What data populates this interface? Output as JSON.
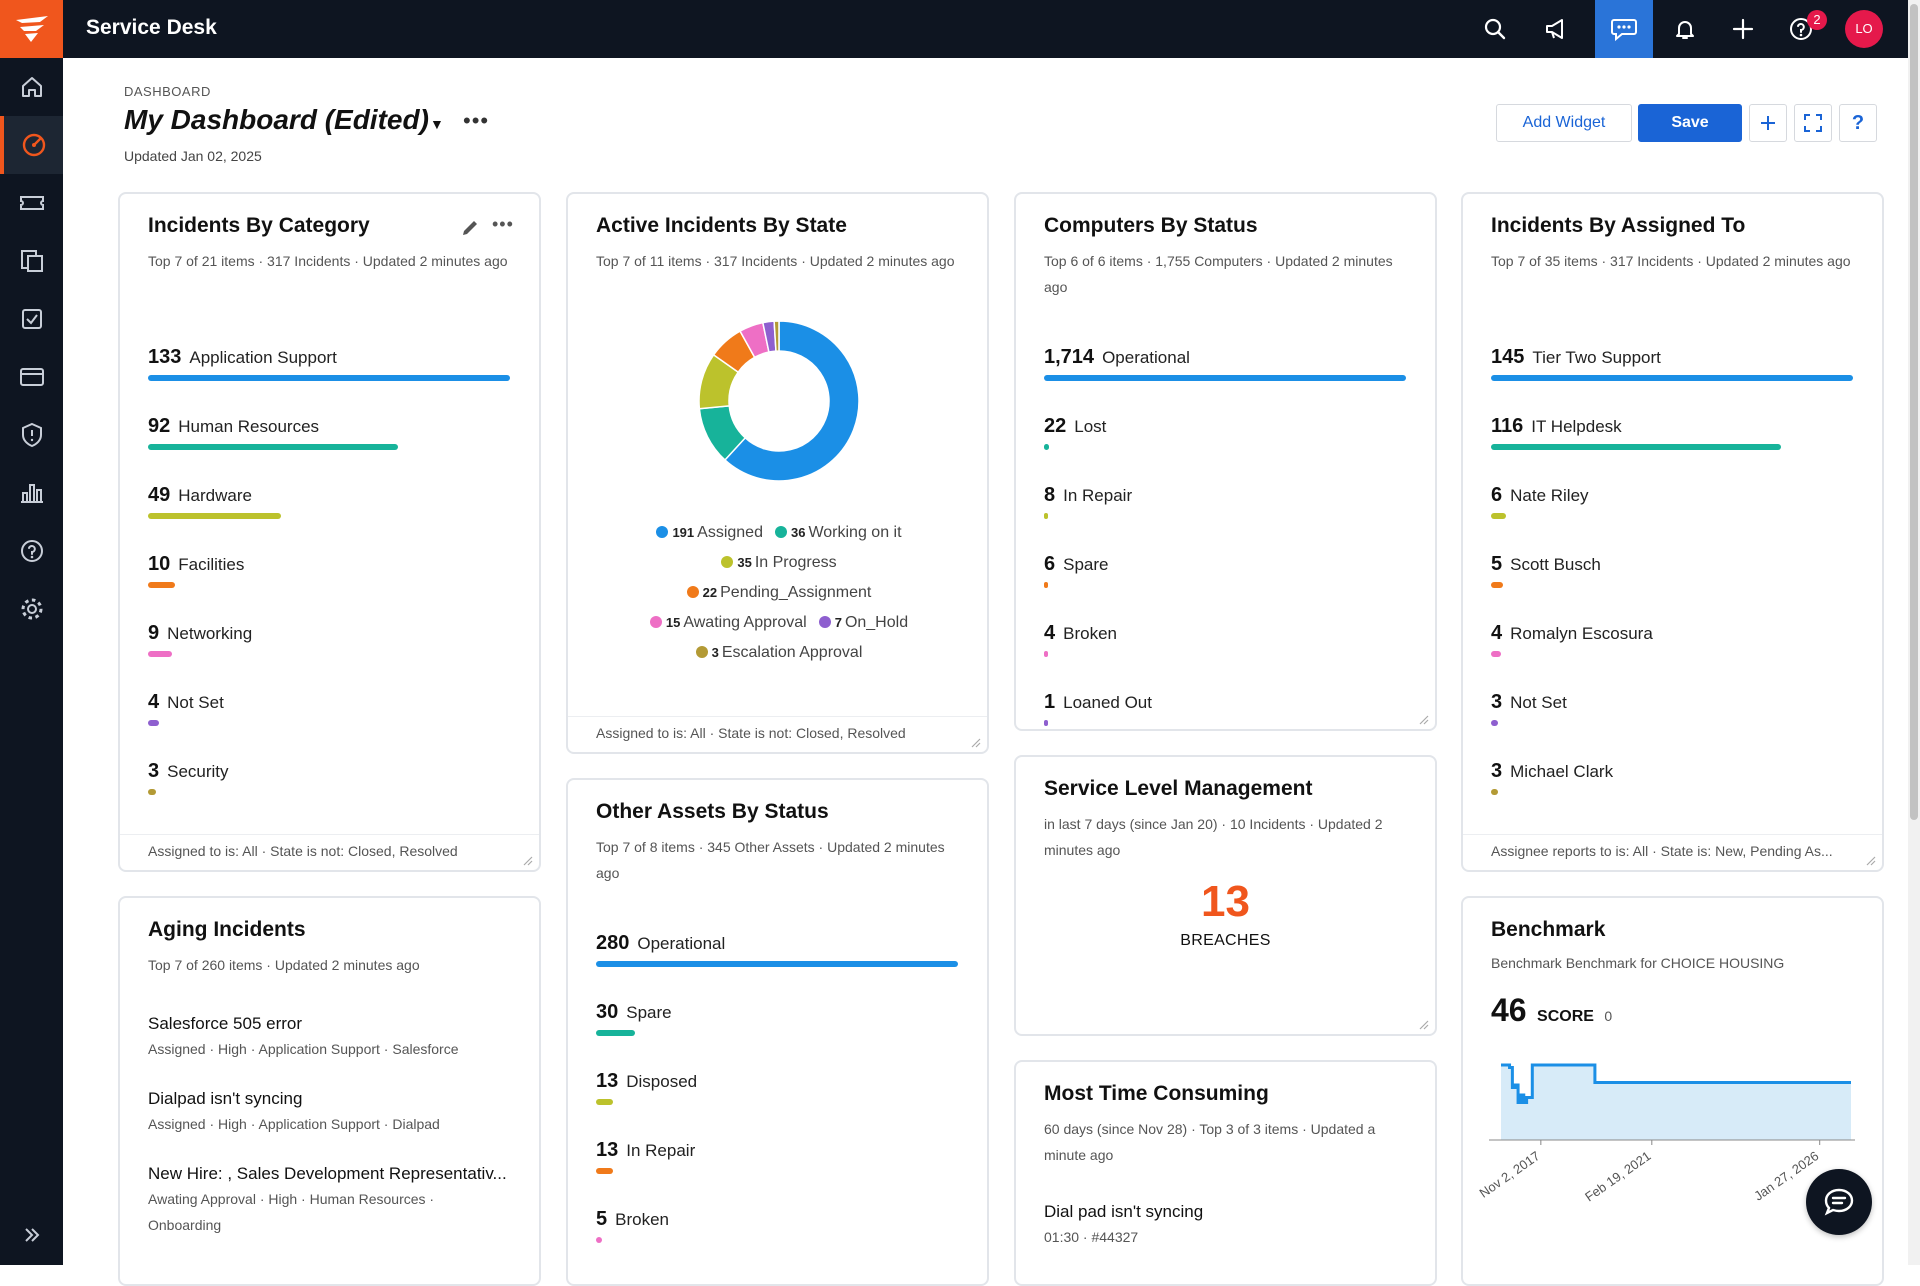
{
  "app": {
    "title": "Service Desk",
    "user_initials": "LO",
    "help_badge": "2"
  },
  "header": {
    "breadcrumb": "DASHBOARD",
    "title": "My Dashboard (Edited)",
    "updated": "Updated Jan 02, 2025",
    "add_widget_label": "Add Widget",
    "save_label": "Save"
  },
  "colors": {
    "accent": "#f0561d",
    "primary": "#1a64d6",
    "series": [
      "#1b8fe6",
      "#17b39a",
      "#bcc22c",
      "#f07a1a",
      "#ee6fc5",
      "#8e5fcf",
      "#b39a35"
    ]
  },
  "widgets": {
    "category": {
      "title": "Incidents By Category",
      "subtitle": "Top 7 of 21 items · 317 Incidents · Updated 2 minutes ago",
      "footer": "Assigned to is: All · State is not: Closed, Resolved",
      "items": [
        {
          "value": 133,
          "label": "Application Support"
        },
        {
          "value": 92,
          "label": "Human Resources"
        },
        {
          "value": 49,
          "label": "Hardware"
        },
        {
          "value": 10,
          "label": "Facilities"
        },
        {
          "value": 9,
          "label": "Networking"
        },
        {
          "value": 4,
          "label": "Not Set"
        },
        {
          "value": 3,
          "label": "Security"
        }
      ]
    },
    "state": {
      "title": "Active Incidents By State",
      "subtitle": "Top 7 of 11 items · 317 Incidents · Updated 2 minutes ago",
      "footer": "Assigned to is: All · State is not: Closed, Resolved",
      "items": [
        {
          "value": 191,
          "label": "Assigned"
        },
        {
          "value": 36,
          "label": "Working on it"
        },
        {
          "value": 35,
          "label": "In Progress"
        },
        {
          "value": 22,
          "label": "Pending_Assignment"
        },
        {
          "value": 15,
          "label": "Awating Approval"
        },
        {
          "value": 7,
          "label": "On_Hold"
        },
        {
          "value": 3,
          "label": "Escalation Approval"
        }
      ]
    },
    "computers": {
      "title": "Computers By Status",
      "subtitle": "Top 6 of 6 items · 1,755 Computers · Updated 2 minutes ago",
      "items": [
        {
          "value": 1714,
          "display": "1,714",
          "label": "Operational"
        },
        {
          "value": 22,
          "display": "22",
          "label": "Lost"
        },
        {
          "value": 8,
          "display": "8",
          "label": "In Repair"
        },
        {
          "value": 6,
          "display": "6",
          "label": "Spare"
        },
        {
          "value": 4,
          "display": "4",
          "label": "Broken"
        },
        {
          "value": 1,
          "display": "1",
          "label": "Loaned Out"
        }
      ]
    },
    "assigned": {
      "title": "Incidents By Assigned To",
      "subtitle": "Top 7 of 35 items · 317 Incidents · Updated 2 minutes ago",
      "footer": "Assignee reports to is: All · State is: New, Pending As...",
      "items": [
        {
          "value": 145,
          "label": "Tier Two Support"
        },
        {
          "value": 116,
          "label": "IT Helpdesk"
        },
        {
          "value": 6,
          "label": "Nate Riley"
        },
        {
          "value": 5,
          "label": "Scott Busch"
        },
        {
          "value": 4,
          "label": "Romalyn Escosura"
        },
        {
          "value": 3,
          "label": "Not Set"
        },
        {
          "value": 3,
          "label": "Michael Clark"
        }
      ]
    },
    "aging": {
      "title": "Aging Incidents",
      "subtitle": "Top 7 of 260 items · Updated 2 minutes ago",
      "items": [
        {
          "title": "Salesforce 505 error",
          "meta": "Assigned · High · Application Support · Salesforce"
        },
        {
          "title": "Dialpad isn't syncing",
          "meta": "Assigned · High · Application Support · Dialpad"
        },
        {
          "title": "New Hire: , Sales Development Representativ...",
          "meta": "Awating Approval · High · Human Resources · Onboarding"
        }
      ]
    },
    "other_assets": {
      "title": "Other Assets By Status",
      "subtitle": "Top 7 of 8 items · 345 Other Assets · Updated 2 minutes ago",
      "items": [
        {
          "value": 280,
          "label": "Operational"
        },
        {
          "value": 30,
          "label": "Spare"
        },
        {
          "value": 13,
          "label": "Disposed"
        },
        {
          "value": 13,
          "label": "In Repair"
        },
        {
          "value": 5,
          "label": "Broken"
        }
      ]
    },
    "slm": {
      "title": "Service Level Management",
      "subtitle": "in last 7 days (since Jan 20) · 10 Incidents · Updated 2 minutes ago",
      "value": "13",
      "value_label": "BREACHES"
    },
    "time_consuming": {
      "title": "Most Time Consuming",
      "subtitle": "60 days (since Nov 28) · Top 3 of 3 items · Updated a minute ago",
      "items": [
        {
          "title": "Dial pad isn't syncing",
          "meta": "01:30 · #44327"
        }
      ]
    },
    "benchmark": {
      "title": "Benchmark",
      "subtitle": "Benchmark Benchmark for CHOICE HOUSING",
      "score": "46",
      "score_label": "SCORE",
      "score_delta": "0"
    }
  },
  "chart_data": {
    "type": "area",
    "x_tick_labels": [
      "Nov 2, 2017",
      "Feb 19, 2021",
      "Jan 27, 2026"
    ],
    "x": [
      "2016-09",
      "2016-11",
      "2016-12",
      "2017-01",
      "2017-02",
      "2017-03",
      "2017-04",
      "2017-05",
      "2017-06",
      "2017-08",
      "2017-10",
      "2019-05",
      "2019-06",
      "2026-12"
    ],
    "values": [
      60,
      60,
      58,
      42,
      44,
      30,
      36,
      30,
      34,
      60,
      60,
      60,
      46,
      46
    ],
    "ylim": [
      0,
      64
    ],
    "grid": false
  }
}
